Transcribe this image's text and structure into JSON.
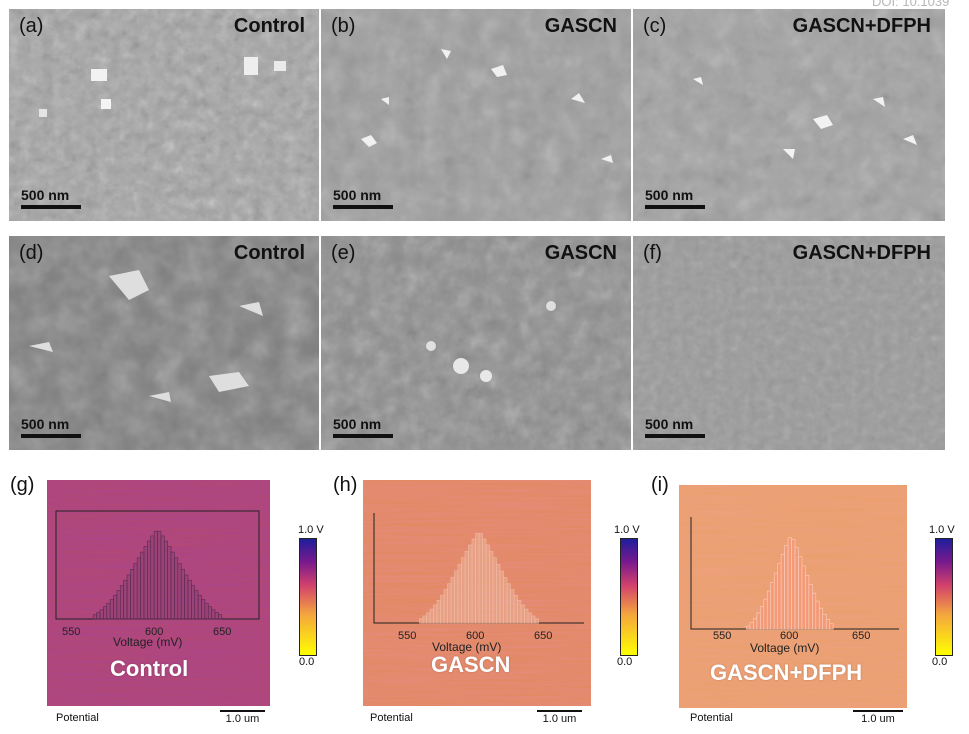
{
  "doi": "DOI: 10.1039",
  "sem_panels": [
    {
      "letter": "(a)",
      "title": "Control",
      "scale": "500 nm"
    },
    {
      "letter": "(b)",
      "title": "GASCN",
      "scale": "500 nm"
    },
    {
      "letter": "(c)",
      "title": "GASCN+DFPH",
      "scale": "500 nm"
    },
    {
      "letter": "(d)",
      "title": "Control",
      "scale": "500 nm"
    },
    {
      "letter": "(e)",
      "title": "GASCN",
      "scale": "500 nm"
    },
    {
      "letter": "(f)",
      "title": "GASCN+DFPH",
      "scale": "500 nm"
    }
  ],
  "kpfm_panels": [
    {
      "letter": "(g)",
      "label": "Control",
      "potential": "Potential",
      "scale": "1.0 um"
    },
    {
      "letter": "(h)",
      "label": "GASCN",
      "potential": "Potential",
      "scale": "1.0 um"
    },
    {
      "letter": "(i)",
      "label": "GASCN+DFPH",
      "potential": "Potential",
      "scale": "1.0 um"
    }
  ],
  "colorbar": {
    "max": "1.0 V",
    "min": "0.0"
  },
  "chart_data": [
    {
      "type": "bar",
      "xlabel": "Voltage (mV)",
      "xticks": [
        550,
        600,
        650
      ],
      "xlim": [
        520,
        680
      ],
      "distribution": {
        "center": 600,
        "spread": 28
      }
    },
    {
      "type": "bar",
      "xlabel": "Voltage (mV)",
      "xticks": [
        550,
        600,
        650
      ],
      "xlim": [
        520,
        680
      ],
      "distribution": {
        "center": 600,
        "spread": 25
      }
    },
    {
      "type": "bar",
      "xlabel": "Voltage (mV)",
      "xticks": [
        550,
        600,
        650
      ],
      "xlim": [
        520,
        680
      ],
      "distribution": {
        "center": 597,
        "spread": 18
      }
    }
  ],
  "colors": {
    "kpfm_control": "#b4496f",
    "kpfm_gascn": "#e08a5a",
    "kpfm_dfph": "#e9a06a"
  }
}
